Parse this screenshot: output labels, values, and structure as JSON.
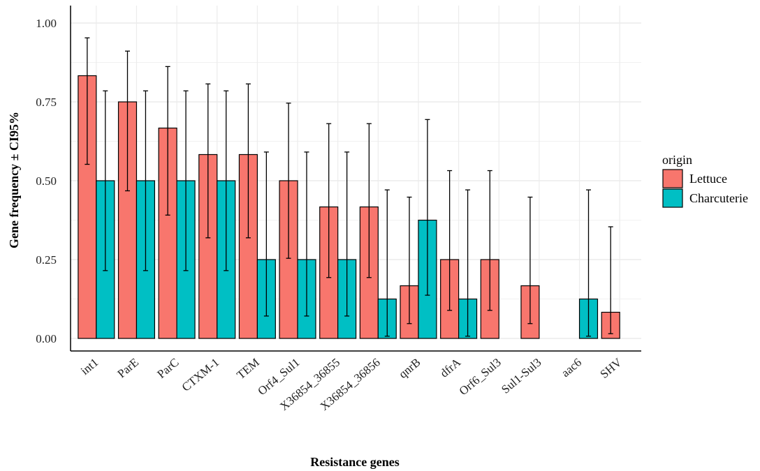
{
  "chart_data": {
    "type": "bar",
    "title": "",
    "xlabel": "Resistance genes",
    "ylabel": "Gene frequency ± CI95%",
    "ylim": [
      0,
      1.0
    ],
    "yticks": [
      "0.00",
      "0.25",
      "0.50",
      "0.75",
      "1.00"
    ],
    "ytick_values": [
      0,
      0.25,
      0.5,
      0.75,
      1.0
    ],
    "grid": true,
    "legend_placement": "right",
    "legend_title": "origin",
    "categories": [
      "int1",
      "ParE",
      "ParC",
      "CTXM-1",
      "TEM",
      "Orf4_Sul1",
      "X36854_36855",
      "X36854_36856",
      "qnrB",
      "dfrA",
      "Orf6_Sul3",
      "Sul1-Sul3",
      "aac6",
      "SHV"
    ],
    "series": [
      {
        "name": "Lettuce",
        "color": "#F8766D",
        "values": [
          0.833,
          0.75,
          0.667,
          0.583,
          0.583,
          0.5,
          0.417,
          0.417,
          0.167,
          0.25,
          0.25,
          0.167,
          0.0,
          0.083
        ],
        "ci_low": [
          0.552,
          0.468,
          0.391,
          0.319,
          0.319,
          0.254,
          0.193,
          0.193,
          0.047,
          0.089,
          0.089,
          0.047,
          0.0,
          0.015
        ],
        "ci_high": [
          0.953,
          0.911,
          0.862,
          0.807,
          0.807,
          0.746,
          0.681,
          0.681,
          0.448,
          0.532,
          0.532,
          0.448,
          0.0,
          0.354
        ]
      },
      {
        "name": "Charcuterie",
        "color": "#00BFC4",
        "values": [
          0.5,
          0.5,
          0.5,
          0.5,
          0.25,
          0.25,
          0.25,
          0.125,
          0.375,
          0.125,
          0.0,
          0.0,
          0.125,
          0.0
        ],
        "ci_low": [
          0.215,
          0.215,
          0.215,
          0.215,
          0.071,
          0.071,
          0.071,
          0.007,
          0.137,
          0.007,
          0.0,
          0.0,
          0.007,
          0.0
        ],
        "ci_high": [
          0.785,
          0.785,
          0.785,
          0.785,
          0.591,
          0.591,
          0.591,
          0.471,
          0.694,
          0.471,
          0.0,
          0.0,
          0.471,
          0.0
        ]
      }
    ]
  }
}
